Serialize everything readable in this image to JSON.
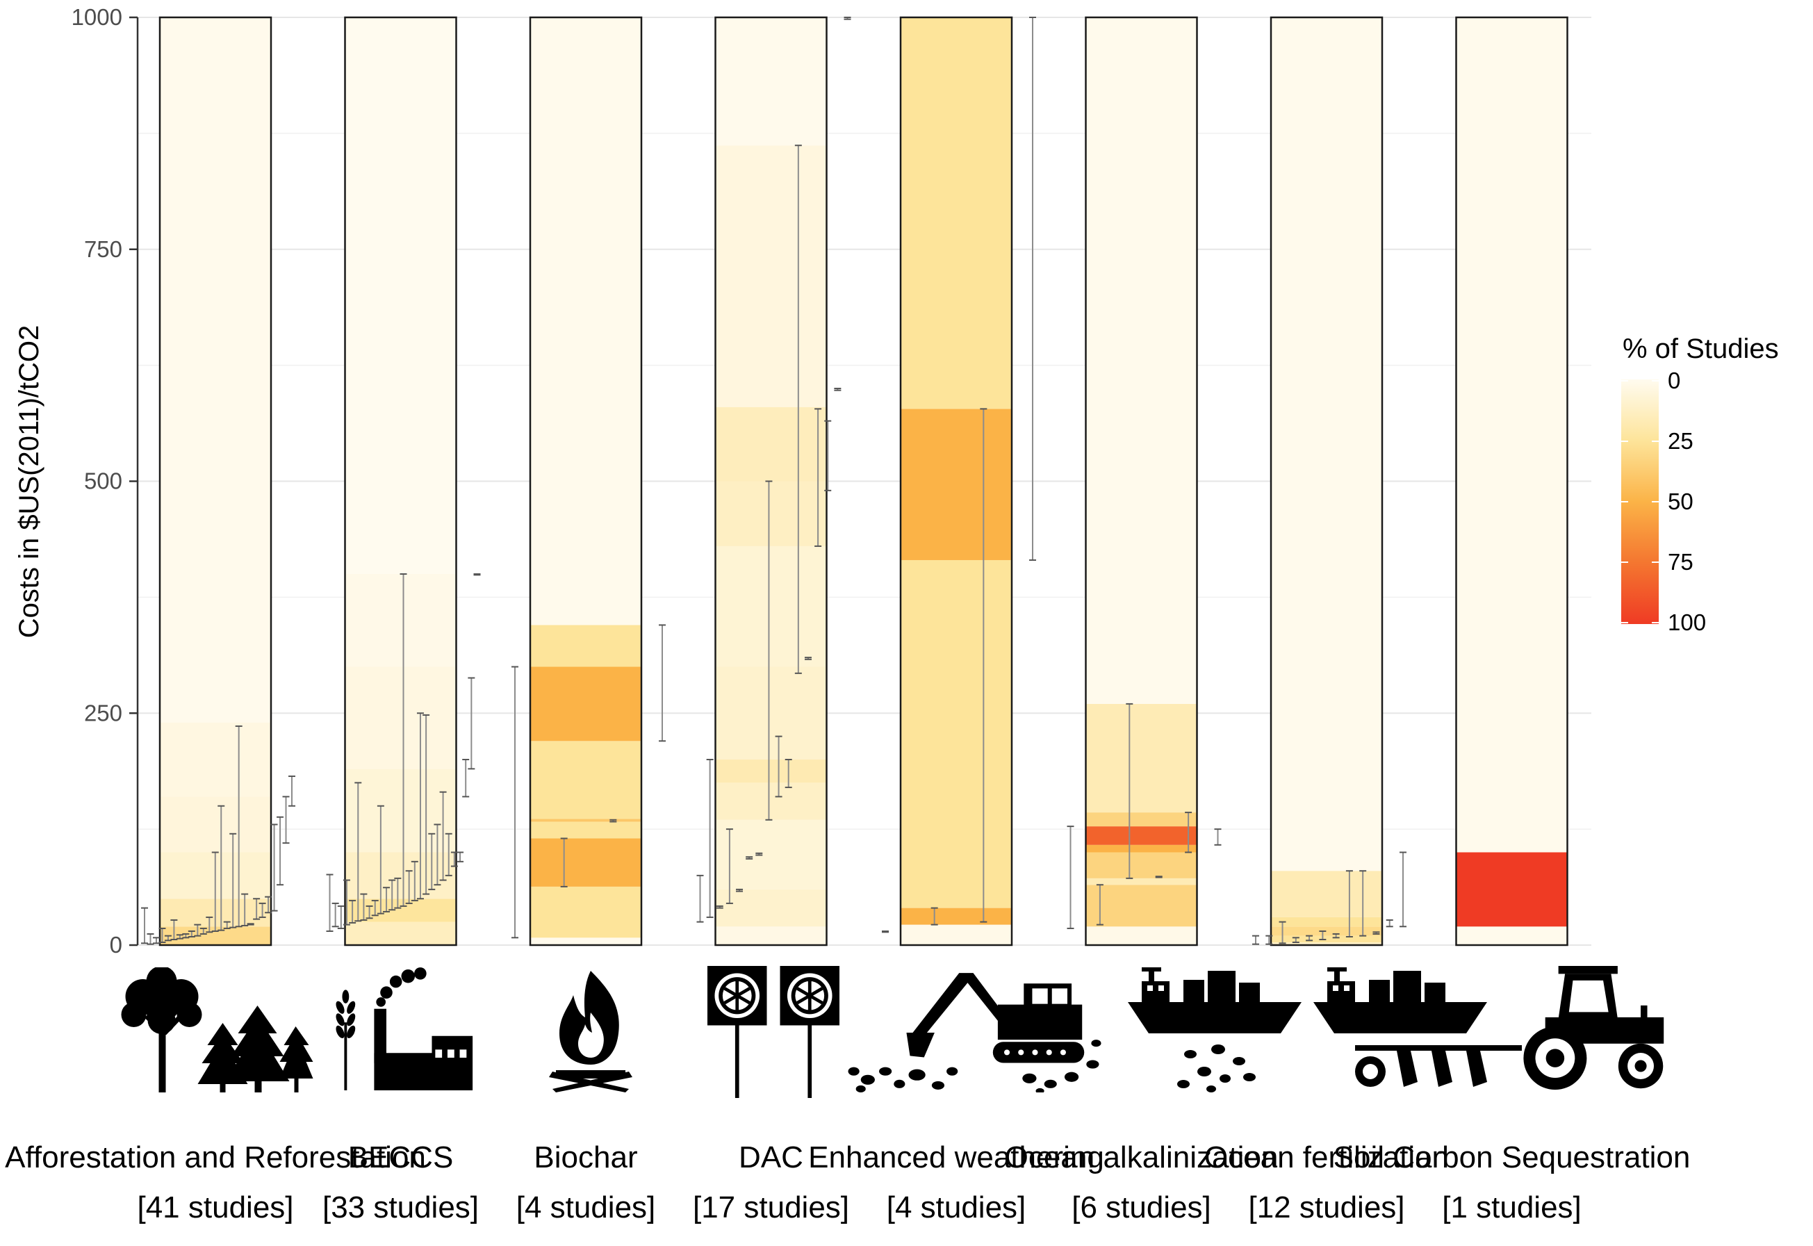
{
  "chart_data": {
    "type": "heatmap",
    "title": "",
    "xlabel": "",
    "ylabel": "Costs in $US(2011)/tCO2",
    "ylim": [
      0,
      1000
    ],
    "yticks": [
      0,
      250,
      500,
      750,
      1000
    ],
    "grid": true,
    "legend": {
      "title": "% of Studies",
      "position": "right",
      "ticks": [
        "0",
        "25",
        "50",
        "75",
        "100"
      ],
      "colors": [
        "#fffbef",
        "#fde49a",
        "#fbb347",
        "#f47630",
        "#ef3b24"
      ]
    },
    "categories": [
      {
        "name": "Afforestation and Reforestation",
        "studies": "[41 studies]",
        "icon": "trees-icon",
        "bands": [
          {
            "y0": 0,
            "y1": 20,
            "pct": 30
          },
          {
            "y0": 20,
            "y1": 50,
            "pct": 18
          },
          {
            "y0": 50,
            "y1": 100,
            "pct": 9
          },
          {
            "y0": 100,
            "y1": 160,
            "pct": 6
          },
          {
            "y0": 160,
            "y1": 240,
            "pct": 4
          },
          {
            "y0": 240,
            "y1": 1000,
            "pct": 1
          }
        ],
        "ranges": [
          {
            "low": 2,
            "high": 40
          },
          {
            "low": 1,
            "high": 12
          },
          {
            "low": 2,
            "high": 8
          },
          {
            "low": 3,
            "high": 18
          },
          {
            "low": 5,
            "high": 10
          },
          {
            "low": 6,
            "high": 27
          },
          {
            "low": 7,
            "high": 11
          },
          {
            "low": 8,
            "high": 12
          },
          {
            "low": 9,
            "high": 15
          },
          {
            "low": 10,
            "high": 22
          },
          {
            "low": 12,
            "high": 18
          },
          {
            "low": 14,
            "high": 30
          },
          {
            "low": 15,
            "high": 100
          },
          {
            "low": 16,
            "high": 150
          },
          {
            "low": 18,
            "high": 25
          },
          {
            "low": 19,
            "high": 120
          },
          {
            "low": 20,
            "high": 236
          },
          {
            "low": 21,
            "high": 55
          },
          {
            "low": 22,
            "high": 23
          },
          {
            "low": 28,
            "high": 50
          },
          {
            "low": 30,
            "high": 45
          },
          {
            "low": 35,
            "high": 52
          },
          {
            "low": 37,
            "high": 130
          },
          {
            "low": 65,
            "high": 138
          },
          {
            "low": 110,
            "high": 160
          },
          {
            "low": 150,
            "high": 182
          }
        ]
      },
      {
        "name": "BECCS",
        "studies": "[33 studies]",
        "icon": "wheat-factory-icon",
        "bands": [
          {
            "y0": 0,
            "y1": 25,
            "pct": 14
          },
          {
            "y0": 25,
            "y1": 50,
            "pct": 24
          },
          {
            "y0": 50,
            "y1": 100,
            "pct": 12
          },
          {
            "y0": 100,
            "y1": 190,
            "pct": 7
          },
          {
            "y0": 190,
            "y1": 300,
            "pct": 4
          },
          {
            "y0": 300,
            "y1": 400,
            "pct": 2
          },
          {
            "y0": 400,
            "y1": 1000,
            "pct": 0
          }
        ],
        "ranges": [
          {
            "low": 15,
            "high": 76
          },
          {
            "low": 20,
            "high": 45
          },
          {
            "low": 18,
            "high": 42
          },
          {
            "low": 22,
            "high": 70
          },
          {
            "low": 24,
            "high": 48
          },
          {
            "low": 26,
            "high": 175
          },
          {
            "low": 27,
            "high": 55
          },
          {
            "low": 29,
            "high": 42
          },
          {
            "low": 32,
            "high": 48
          },
          {
            "low": 34,
            "high": 150
          },
          {
            "low": 36,
            "high": 62
          },
          {
            "low": 38,
            "high": 70
          },
          {
            "low": 40,
            "high": 72
          },
          {
            "low": 42,
            "high": 400
          },
          {
            "low": 45,
            "high": 80
          },
          {
            "low": 48,
            "high": 90
          },
          {
            "low": 50,
            "high": 250
          },
          {
            "low": 55,
            "high": 248
          },
          {
            "low": 60,
            "high": 120
          },
          {
            "low": 65,
            "high": 130
          },
          {
            "low": 70,
            "high": 165
          },
          {
            "low": 75,
            "high": 120
          },
          {
            "low": 85,
            "high": 100
          },
          {
            "low": 90,
            "high": 100
          },
          {
            "low": 160,
            "high": 200
          },
          {
            "low": 190,
            "high": 288
          },
          {
            "low": 399,
            "high": 400
          }
        ]
      },
      {
        "name": "Biochar",
        "studies": "[4 studies]",
        "icon": "fire-icon",
        "bands": [
          {
            "y0": 0,
            "y1": 8,
            "pct": 1
          },
          {
            "y0": 8,
            "y1": 63,
            "pct": 25
          },
          {
            "y0": 63,
            "y1": 115,
            "pct": 50
          },
          {
            "y0": 115,
            "y1": 133,
            "pct": 25
          },
          {
            "y0": 133,
            "y1": 136,
            "pct": 40
          },
          {
            "y0": 136,
            "y1": 220,
            "pct": 25
          },
          {
            "y0": 220,
            "y1": 300,
            "pct": 50
          },
          {
            "y0": 300,
            "y1": 345,
            "pct": 25
          },
          {
            "y0": 345,
            "y1": 1000,
            "pct": 1
          }
        ],
        "ranges": [
          {
            "low": 8,
            "high": 300
          },
          {
            "low": 63,
            "high": 115
          },
          {
            "low": 133,
            "high": 135
          },
          {
            "low": 220,
            "high": 345
          }
        ]
      },
      {
        "name": "DAC",
        "studies": "[17 studies]",
        "icon": "fan-icon",
        "bands": [
          {
            "y0": 0,
            "y1": 20,
            "pct": 3
          },
          {
            "y0": 20,
            "y1": 60,
            "pct": 10
          },
          {
            "y0": 60,
            "y1": 135,
            "pct": 7
          },
          {
            "y0": 135,
            "y1": 175,
            "pct": 12
          },
          {
            "y0": 175,
            "y1": 200,
            "pct": 18
          },
          {
            "y0": 200,
            "y1": 300,
            "pct": 10
          },
          {
            "y0": 300,
            "y1": 430,
            "pct": 8
          },
          {
            "y0": 430,
            "y1": 500,
            "pct": 13
          },
          {
            "y0": 500,
            "y1": 580,
            "pct": 15
          },
          {
            "y0": 580,
            "y1": 862,
            "pct": 5
          },
          {
            "y0": 862,
            "y1": 1000,
            "pct": 1
          }
        ],
        "ranges": [
          {
            "low": 25,
            "high": 75
          },
          {
            "low": 30,
            "high": 200
          },
          {
            "low": 40,
            "high": 42
          },
          {
            "low": 45,
            "high": 125
          },
          {
            "low": 58,
            "high": 60
          },
          {
            "low": 93,
            "high": 95
          },
          {
            "low": 97,
            "high": 99
          },
          {
            "low": 135,
            "high": 500
          },
          {
            "low": 160,
            "high": 225
          },
          {
            "low": 170,
            "high": 200
          },
          {
            "low": 293,
            "high": 862
          },
          {
            "low": 308,
            "high": 310
          },
          {
            "low": 430,
            "high": 578
          },
          {
            "low": 490,
            "high": 565
          },
          {
            "low": 598,
            "high": 600
          },
          {
            "low": 998,
            "high": 1000
          }
        ]
      },
      {
        "name": "Enhanced weathering",
        "studies": "[4 studies]",
        "icon": "excavator-icon",
        "bands": [
          {
            "y0": 0,
            "y1": 22,
            "pct": 2
          },
          {
            "y0": 22,
            "y1": 40,
            "pct": 50
          },
          {
            "y0": 40,
            "y1": 415,
            "pct": 25
          },
          {
            "y0": 415,
            "y1": 578,
            "pct": 50
          },
          {
            "y0": 578,
            "y1": 1000,
            "pct": 25
          }
        ],
        "ranges": [
          {
            "low": 14,
            "high": 15
          },
          {
            "low": 22,
            "high": 40
          },
          {
            "low": 25,
            "high": 578
          },
          {
            "low": 415,
            "high": 1000
          }
        ]
      },
      {
        "name": "Ocean alkalinization",
        "studies": "[6 studies]",
        "icon": "ship-rocks-icon",
        "bands": [
          {
            "y0": 0,
            "y1": 20,
            "pct": 2
          },
          {
            "y0": 20,
            "y1": 65,
            "pct": 33
          },
          {
            "y0": 65,
            "y1": 72,
            "pct": 17
          },
          {
            "y0": 72,
            "y1": 100,
            "pct": 33
          },
          {
            "y0": 100,
            "y1": 108,
            "pct": 50
          },
          {
            "y0": 108,
            "y1": 128,
            "pct": 83
          },
          {
            "y0": 128,
            "y1": 143,
            "pct": 33
          },
          {
            "y0": 143,
            "y1": 260,
            "pct": 17
          },
          {
            "y0": 260,
            "y1": 1000,
            "pct": 1
          }
        ],
        "ranges": [
          {
            "low": 18,
            "high": 128
          },
          {
            "low": 22,
            "high": 65
          },
          {
            "low": 72,
            "high": 260
          },
          {
            "low": 73,
            "high": 74
          },
          {
            "low": 100,
            "high": 143
          },
          {
            "low": 108,
            "high": 125
          }
        ]
      },
      {
        "name": "Ocean fertilization",
        "studies": "[12 studies]",
        "icon": "ship-plow-icon",
        "bands": [
          {
            "y0": 0,
            "y1": 3,
            "pct": 12
          },
          {
            "y0": 3,
            "y1": 10,
            "pct": 25
          },
          {
            "y0": 10,
            "y1": 20,
            "pct": 30
          },
          {
            "y0": 20,
            "y1": 30,
            "pct": 25
          },
          {
            "y0": 30,
            "y1": 80,
            "pct": 17
          },
          {
            "y0": 80,
            "y1": 1000,
            "pct": 1
          }
        ],
        "ranges": [
          {
            "low": 1,
            "high": 10
          },
          {
            "low": 1,
            "high": 10
          },
          {
            "low": 2,
            "high": 25
          },
          {
            "low": 3,
            "high": 8
          },
          {
            "low": 5,
            "high": 10
          },
          {
            "low": 6,
            "high": 15
          },
          {
            "low": 8,
            "high": 12
          },
          {
            "low": 9,
            "high": 80
          },
          {
            "low": 10,
            "high": 80
          },
          {
            "low": 12,
            "high": 14
          },
          {
            "low": 20,
            "high": 27
          },
          {
            "low": 20,
            "high": 100
          }
        ]
      },
      {
        "name": "Soil Carbon Sequestration",
        "studies": "[1 studies]",
        "icon": "tractor-icon",
        "bands": [
          {
            "y0": 0,
            "y1": 20,
            "pct": 1
          },
          {
            "y0": 20,
            "y1": 100,
            "pct": 100
          },
          {
            "y0": 100,
            "y1": 1000,
            "pct": 1
          }
        ],
        "ranges": []
      }
    ]
  }
}
